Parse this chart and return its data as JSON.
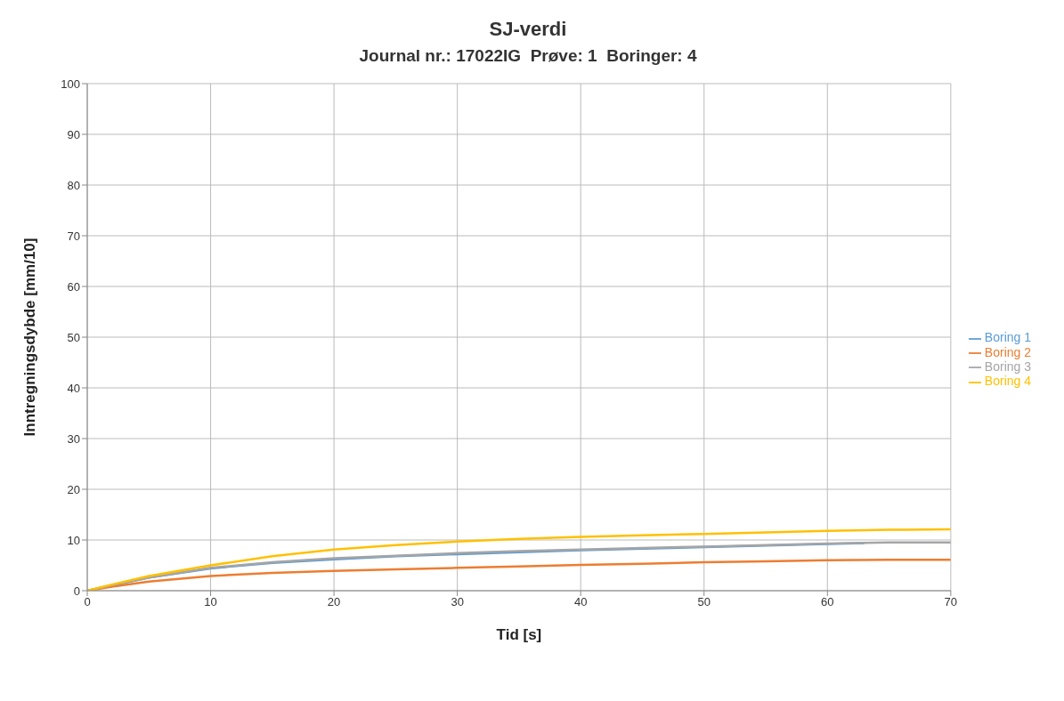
{
  "chart_data": {
    "type": "line",
    "title": "SJ-verdi",
    "subtitle": "Journal nr.: 17022IG  Prøve: 1  Boringer: 4",
    "xlabel": "Tid [s]",
    "ylabel": "Inntregningsdybde [mm/10]",
    "xlim": [
      0,
      70
    ],
    "xticks": [
      0,
      10,
      20,
      30,
      40,
      50,
      60,
      70
    ],
    "ylim": [
      0,
      100
    ],
    "yticks": [
      0,
      10,
      20,
      30,
      40,
      50,
      60,
      70,
      80,
      90,
      100
    ],
    "grid": true,
    "legend": "right",
    "marker": "none",
    "line_style": "solid",
    "series": [
      {
        "name": "Boring 1",
        "color": "#5b9bd5",
        "x": [
          0,
          5,
          10,
          15,
          20,
          25,
          30,
          35,
          40,
          45,
          50,
          55,
          60,
          63
        ],
        "values": [
          0,
          2.6,
          4.4,
          5.5,
          6.2,
          6.8,
          7.2,
          7.6,
          8.0,
          8.3,
          8.6,
          8.9,
          9.2,
          9.4
        ]
      },
      {
        "name": "Boring 2",
        "color": "#ed7d31",
        "x": [
          0,
          2,
          5,
          10,
          15,
          20,
          25,
          30,
          35,
          40,
          45,
          50,
          55,
          60,
          65,
          70
        ],
        "values": [
          0,
          0.8,
          1.8,
          2.9,
          3.5,
          3.9,
          4.2,
          4.5,
          4.8,
          5.1,
          5.3,
          5.6,
          5.8,
          6.0,
          6.1,
          6.1
        ]
      },
      {
        "name": "Boring 3",
        "color": "#a5a5a5",
        "x": [
          0,
          2,
          5,
          10,
          15,
          20,
          25,
          30,
          35,
          40,
          45,
          50,
          55,
          60,
          65,
          70
        ],
        "values": [
          0,
          1.1,
          2.6,
          4.5,
          5.6,
          6.4,
          6.9,
          7.4,
          7.8,
          8.1,
          8.4,
          8.7,
          9.0,
          9.3,
          9.5,
          9.5
        ]
      },
      {
        "name": "Boring 4",
        "color": "#ffc000",
        "x": [
          0,
          2,
          5,
          10,
          15,
          20,
          25,
          30,
          35,
          40,
          45,
          50,
          55,
          60,
          65,
          70
        ],
        "values": [
          0,
          1.2,
          2.9,
          5.0,
          6.8,
          8.1,
          9.0,
          9.7,
          10.2,
          10.6,
          10.9,
          11.2,
          11.5,
          11.8,
          12.0,
          12.1
        ]
      }
    ]
  }
}
